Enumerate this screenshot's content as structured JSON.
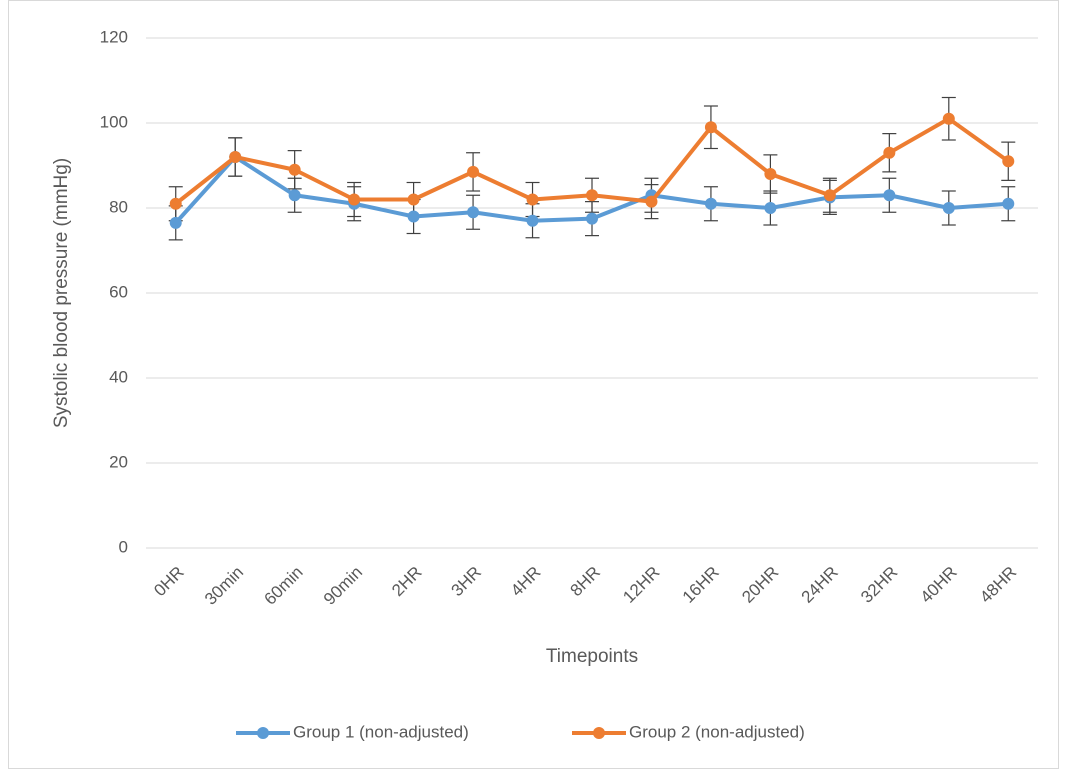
{
  "chart_data": {
    "type": "line",
    "x_label": "Timepoints",
    "y_label": "Systolic blood pressure (mmHg)",
    "categories": [
      "0HR",
      "30min",
      "60min",
      "90min",
      "2HR",
      "3HR",
      "4HR",
      "8HR",
      "12HR",
      "16HR",
      "20HR",
      "24HR",
      "32HR",
      "40HR",
      "48HR"
    ],
    "series": [
      {
        "name": "Group 1 (non-adjusted)",
        "color": "#5b9bd5",
        "values": [
          76.5,
          92,
          83,
          81,
          78,
          79,
          77,
          77.5,
          83,
          81,
          80,
          82.5,
          83,
          80,
          81
        ],
        "errors": [
          4,
          4.5,
          4,
          4,
          4,
          4,
          4,
          4,
          4,
          4,
          4,
          4,
          4,
          4,
          4
        ]
      },
      {
        "name": "Group 2 (non-adjusted)",
        "color": "#ed7d31",
        "values": [
          81,
          92,
          89,
          82,
          82,
          88.5,
          82,
          83,
          81.5,
          99,
          88,
          83,
          93,
          101,
          91
        ],
        "errors": [
          4,
          4.5,
          4.5,
          4,
          4,
          4.5,
          4,
          4,
          4,
          5,
          4.5,
          4,
          4.5,
          5,
          4.5
        ]
      }
    ],
    "ylim": [
      0,
      120
    ],
    "yticks": [
      0,
      20,
      40,
      60,
      80,
      100,
      120
    ],
    "grid": true,
    "legend": "bottom"
  }
}
